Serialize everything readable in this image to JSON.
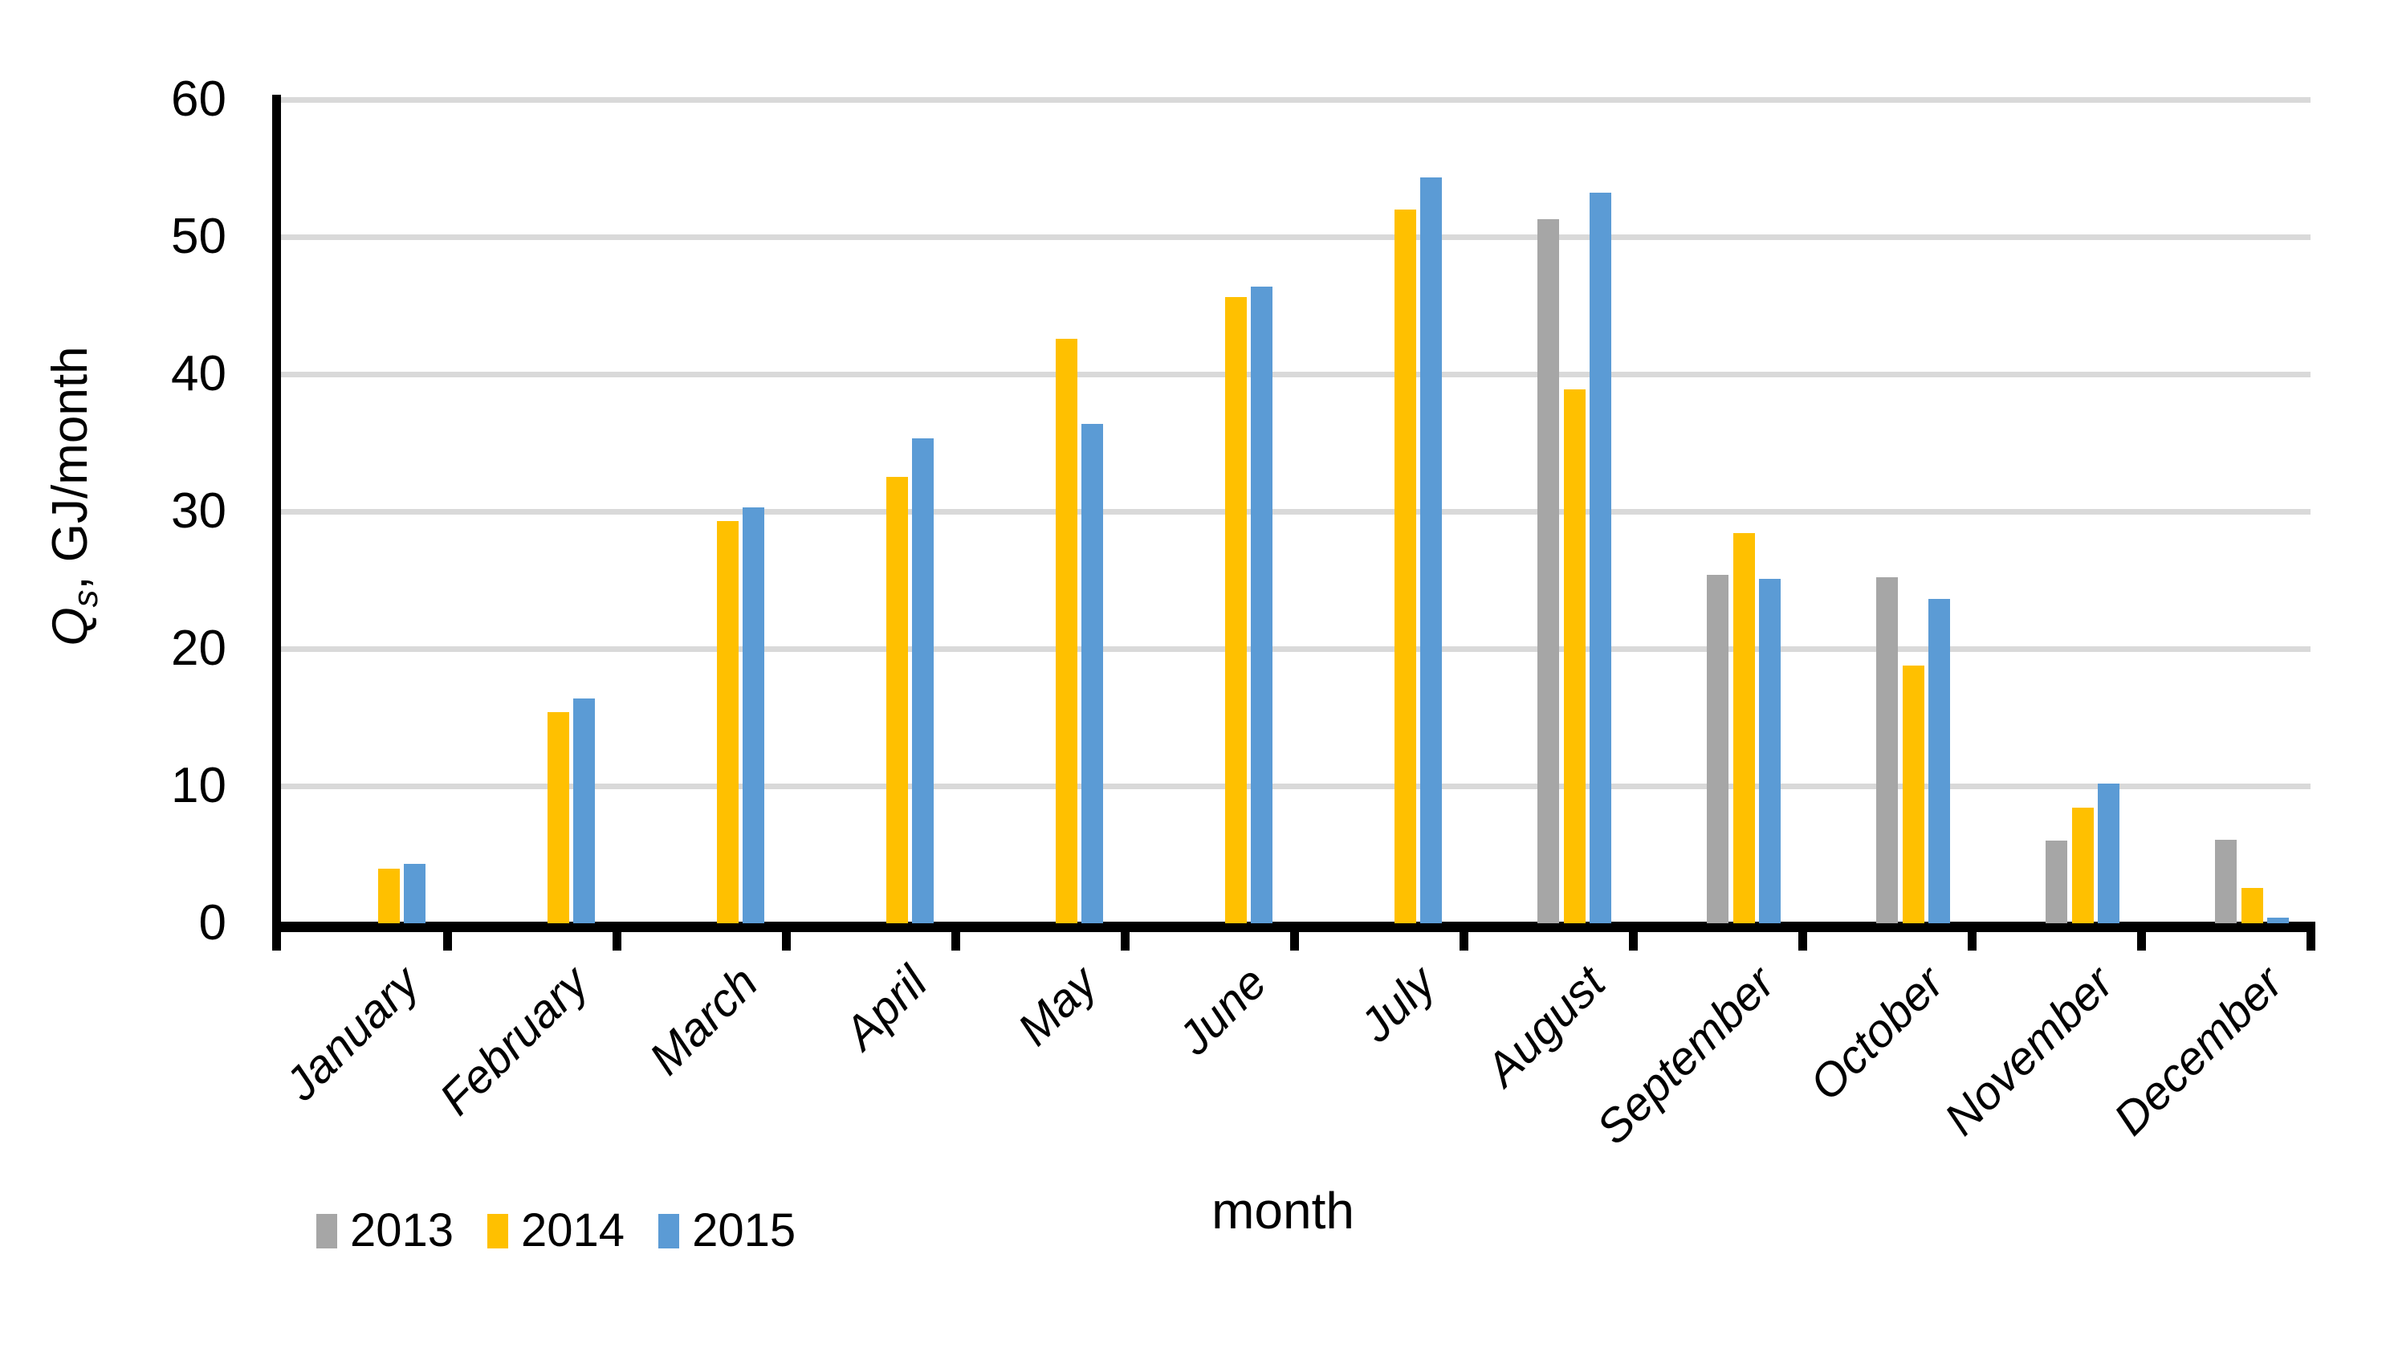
{
  "chart_data": {
    "type": "bar",
    "title": "",
    "xlabel": "month",
    "ylabel": "Qs, GJ/month",
    "ylabel_parts": {
      "variable": "Q",
      "subscript": "s",
      "rest": ", GJ/month"
    },
    "ylim": [
      0,
      60
    ],
    "y_ticks": [
      0,
      10,
      20,
      30,
      40,
      50,
      60
    ],
    "grid": true,
    "legend_position": "bottom-left",
    "categories": [
      "January",
      "February",
      "March",
      "April",
      "May",
      "June",
      "July",
      "August",
      "September",
      "October",
      "November",
      "December"
    ],
    "series": [
      {
        "name": "2013",
        "color": "#A6A6A6",
        "values": [
          null,
          null,
          null,
          null,
          null,
          null,
          null,
          51.3,
          25.4,
          25.2,
          6.0,
          6.1
        ]
      },
      {
        "name": "2014",
        "color": "#FFC000",
        "values": [
          4.0,
          15.4,
          29.3,
          32.5,
          42.6,
          45.6,
          52.0,
          38.9,
          28.4,
          18.8,
          8.4,
          2.6
        ]
      },
      {
        "name": "2015",
        "color": "#5B9BD5",
        "values": [
          4.3,
          16.4,
          30.3,
          35.3,
          36.4,
          46.4,
          54.3,
          53.2,
          25.1,
          23.6,
          10.2,
          0.4
        ]
      }
    ]
  },
  "colors": {
    "background": "#FFFFFF",
    "gridline": "#D9D9D9",
    "axis": "#000000",
    "text": "#000000",
    "series_2013": "#A6A6A6",
    "series_2014": "#FFC000",
    "series_2015": "#5B9BD5"
  }
}
